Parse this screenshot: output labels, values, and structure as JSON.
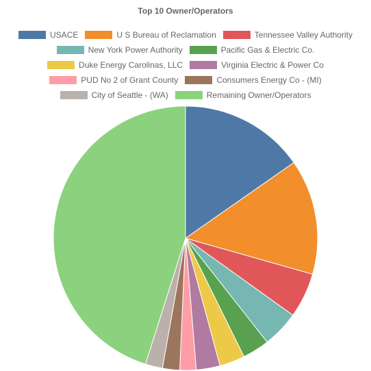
{
  "chart_data": {
    "type": "pie",
    "title": "Top 10 Owner/Operators",
    "legend_position": "top",
    "slices": [
      {
        "label": "USACE",
        "value": 15.3,
        "color": "#4e79a7"
      },
      {
        "label": "U S Bureau of Reclamation",
        "value": 14.1,
        "color": "#f28e2b"
      },
      {
        "label": "Tennessee Valley Authority",
        "value": 5.5,
        "color": "#e15759"
      },
      {
        "label": "New York Power Authority",
        "value": 4.5,
        "color": "#76b7b2"
      },
      {
        "label": "Pacific Gas & Electric Co.",
        "value": 3.3,
        "color": "#59a14f"
      },
      {
        "label": "Duke Energy Carolinas, LLC",
        "value": 3.1,
        "color": "#edc948"
      },
      {
        "label": "Virginia Electric & Power Co",
        "value": 2.9,
        "color": "#b07aa1"
      },
      {
        "label": "PUD No 2 of Grant County",
        "value": 2.0,
        "color": "#ff9da7"
      },
      {
        "label": "Consumers Energy Co - (MI)",
        "value": 2.1,
        "color": "#9c755f"
      },
      {
        "label": "City of Seattle - (WA)",
        "value": 2.1,
        "color": "#bab0ac"
      },
      {
        "label": "Remaining Owner/Operators",
        "value": 45.1,
        "color": "#8cd17d"
      }
    ]
  }
}
